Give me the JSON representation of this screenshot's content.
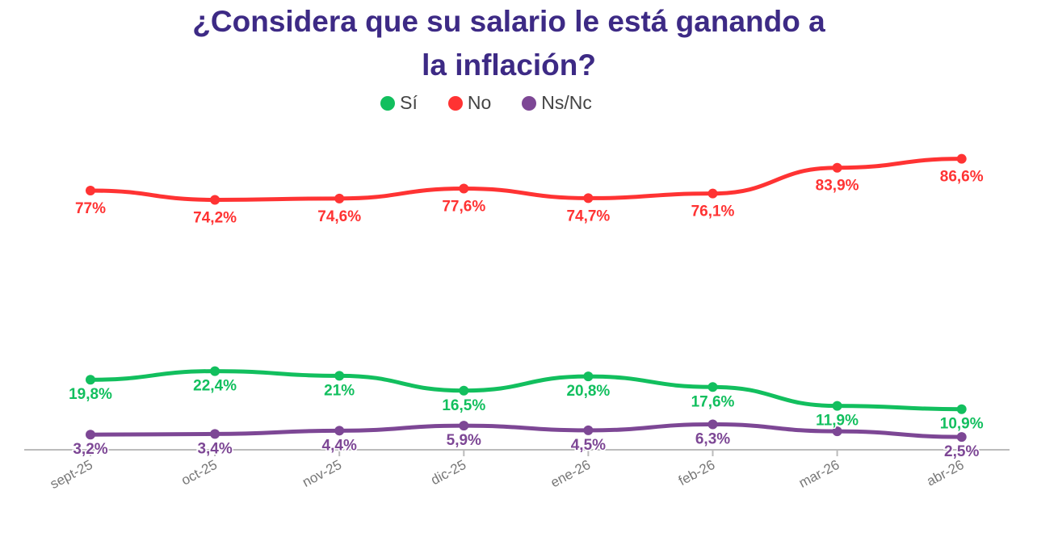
{
  "chart_data": {
    "type": "line",
    "title_line1": "¿Considera que su salario le está ganando a",
    "title_line2": "la inflación?",
    "categories": [
      "sept-25",
      "oct-25",
      "nov-25",
      "dic-25",
      "ene-26",
      "feb-26",
      "mar-26",
      "abr-26"
    ],
    "series": [
      {
        "name": "Sí",
        "color": "#12bf5e",
        "values": [
          19.8,
          22.4,
          21,
          16.5,
          20.8,
          17.6,
          11.9,
          10.9
        ],
        "labels": [
          "19,8%",
          "22,4%",
          "21%",
          "16,5%",
          "20,8%",
          "17,6%",
          "11,9%",
          "10,9%"
        ]
      },
      {
        "name": "No",
        "color": "#ff3333",
        "values": [
          77,
          74.2,
          74.6,
          77.6,
          74.7,
          76.1,
          83.9,
          86.6
        ],
        "labels": [
          "77%",
          "74,2%",
          "74,6%",
          "77,6%",
          "74,7%",
          "76,1%",
          "83,9%",
          "86,6%"
        ]
      },
      {
        "name": "Ns/Nc",
        "color": "#7d4795",
        "values": [
          3.2,
          3.4,
          4.4,
          5.9,
          4.5,
          6.3,
          4.2,
          2.5
        ],
        "labels": [
          "3,2%",
          "3,4%",
          "4,4%",
          "5,9%",
          "4,5%",
          "6,3%",
          "",
          "2,5%"
        ]
      }
    ],
    "ylim": [
      -7,
      98
    ],
    "grid": false,
    "legend_position": "top"
  }
}
